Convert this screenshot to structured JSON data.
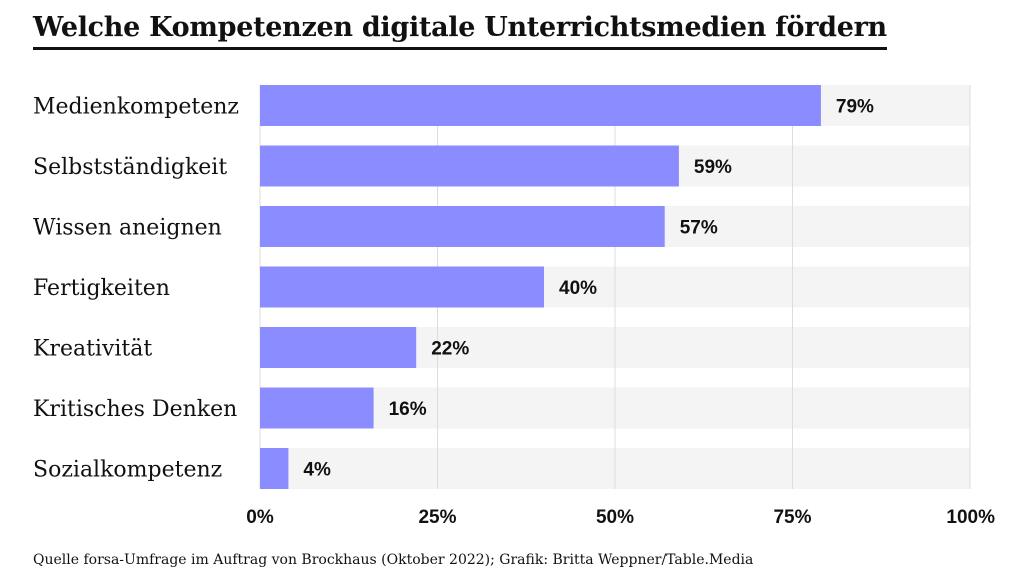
{
  "header": {
    "title": "Welche Kompetenzen digitale Unterrichtsmedien fördern"
  },
  "footer": {
    "source": "Quelle forsa-Umfrage im Auftrag von Brockhaus (Oktober 2022); Grafik: Britta Weppner/Table.Media"
  },
  "colors": {
    "bar": "#8a8cff",
    "track": "#f4f4f4",
    "gridline": "#dddddd",
    "text": "#111111"
  },
  "chart_data": {
    "type": "bar",
    "orientation": "horizontal",
    "title": "Welche Kompetenzen digitale Unterrichtsmedien fördern",
    "categories": [
      "Medienkompetenz",
      "Selbstständigkeit",
      "Wissen aneignen",
      "Fertigkeiten",
      "Kreativität",
      "Kritisches Denken",
      "Sozialkompetenz"
    ],
    "values": [
      79,
      59,
      57,
      40,
      22,
      16,
      4
    ],
    "value_labels": [
      "79%",
      "59%",
      "57%",
      "40%",
      "22%",
      "16%",
      "4%"
    ],
    "xlim": [
      0,
      100
    ],
    "ticks": [
      0,
      25,
      50,
      75,
      100
    ],
    "tick_labels": [
      "0%",
      "25%",
      "50%",
      "75%",
      "100%"
    ],
    "xlabel": "",
    "ylabel": "",
    "grid": true
  }
}
